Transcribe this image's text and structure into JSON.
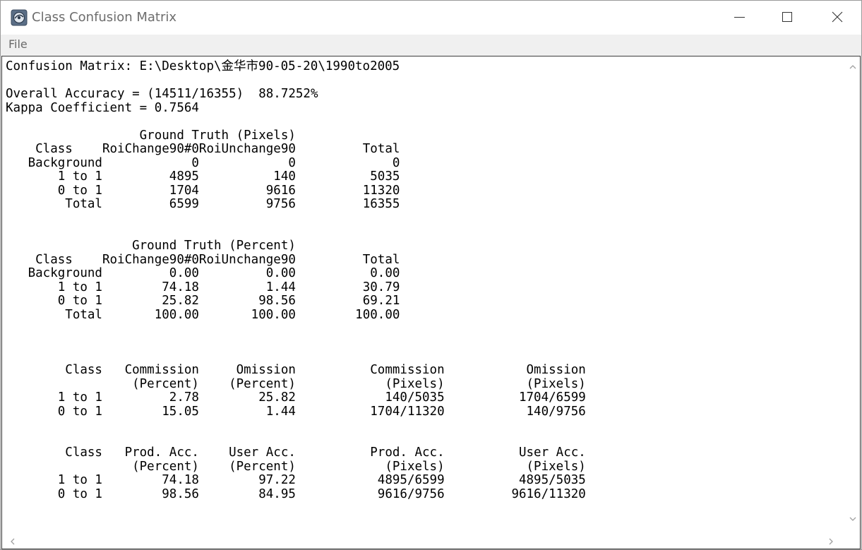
{
  "window": {
    "title": "Class Confusion Matrix",
    "icon": "envi-app-icon",
    "controls": [
      "minimize-icon",
      "maximize-icon",
      "close-icon"
    ]
  },
  "menu": {
    "items": [
      "File"
    ]
  },
  "report": {
    "lines": [
      "Confusion Matrix: E:\\Desktop\\金华市90-05-20\\1990to2005",
      "",
      "Overall Accuracy = (14511/16355)  88.7252%",
      "Kappa Coefficient = 0.7564",
      "",
      "                  Ground Truth (Pixels)",
      "    Class    RoiChange90#0RoiUnchange90         Total",
      "   Background            0            0             0",
      "       1 to 1         4895          140          5035",
      "       0 to 1         1704         9616         11320",
      "        Total         6599         9756         16355",
      "",
      "",
      "                 Ground Truth (Percent)",
      "    Class    RoiChange90#0RoiUnchange90         Total",
      "   Background         0.00         0.00          0.00",
      "       1 to 1        74.18         1.44         30.79",
      "       0 to 1        25.82        98.56         69.21",
      "        Total       100.00       100.00        100.00",
      "",
      "",
      "",
      "        Class   Commission     Omission          Commission           Omission",
      "                 (Percent)    (Percent)            (Pixels)           (Pixels)",
      "       1 to 1         2.78        25.82            140/5035          1704/6599",
      "       0 to 1        15.05         1.44          1704/11320           140/9756",
      "",
      "",
      "        Class   Prod. Acc.    User Acc.          Prod. Acc.          User Acc.",
      "                 (Percent)    (Percent)            (Pixels)           (Pixels)",
      "       1 to 1        74.18        97.22           4895/6599          4895/5035",
      "       0 to 1        98.56        84.95           9616/9756         9616/11320"
    ]
  },
  "scrollbars": {
    "vertical": [
      "chevron-up-icon",
      "chevron-down-icon"
    ],
    "horizontal": [
      "chevron-left-icon",
      "chevron-right-icon"
    ]
  }
}
